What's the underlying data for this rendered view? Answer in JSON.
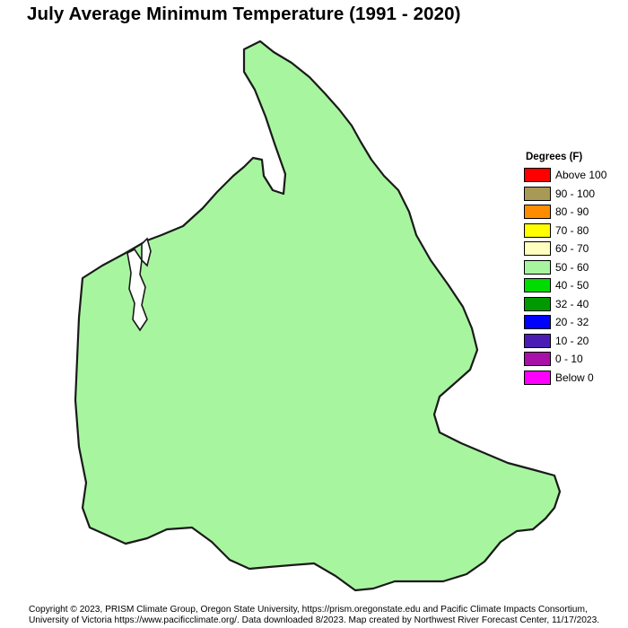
{
  "title": "July Average Minimum Temperature (1991 - 2020)",
  "legend": {
    "title": "Degrees (F)",
    "items": [
      {
        "label": "Above 100",
        "color": "#ff0000"
      },
      {
        "label": "90 - 100",
        "color": "#a89a56"
      },
      {
        "label": "80 - 90",
        "color": "#ff8c00"
      },
      {
        "label": "70 - 80",
        "color": "#ffff00"
      },
      {
        "label": "60 - 70",
        "color": "#ffffc0"
      },
      {
        "label": "50 - 60",
        "color": "#a8f5a0"
      },
      {
        "label": "40 - 50",
        "color": "#00dc00"
      },
      {
        "label": "32 - 40",
        "color": "#009a00"
      },
      {
        "label": "20 - 32",
        "color": "#0000ff"
      },
      {
        "label": "10 - 20",
        "color": "#4b1cb4"
      },
      {
        "label": "0 - 10",
        "color": "#a810a8"
      },
      {
        "label": "Below 0",
        "color": "#ff00ff"
      }
    ]
  },
  "credits": {
    "line1": "Copyright © 2023, PRISM Climate Group, Oregon State University, https://prism.oregonstate.edu and Pacific Climate Impacts Consortium,",
    "line2": "University of Victoria https://www.pacificclimate.org/.  Data downloaded 8/2023. Map created by Northwest River Forecast Center, 11/17/2023."
  },
  "map_colors": {
    "light_green": "#a8f5a0",
    "green": "#00dc00",
    "dark_green": "#009a00",
    "pale_yellow": "#ffffc0",
    "outline": "#1a1a1a",
    "state_border": "#9a9a9a"
  }
}
